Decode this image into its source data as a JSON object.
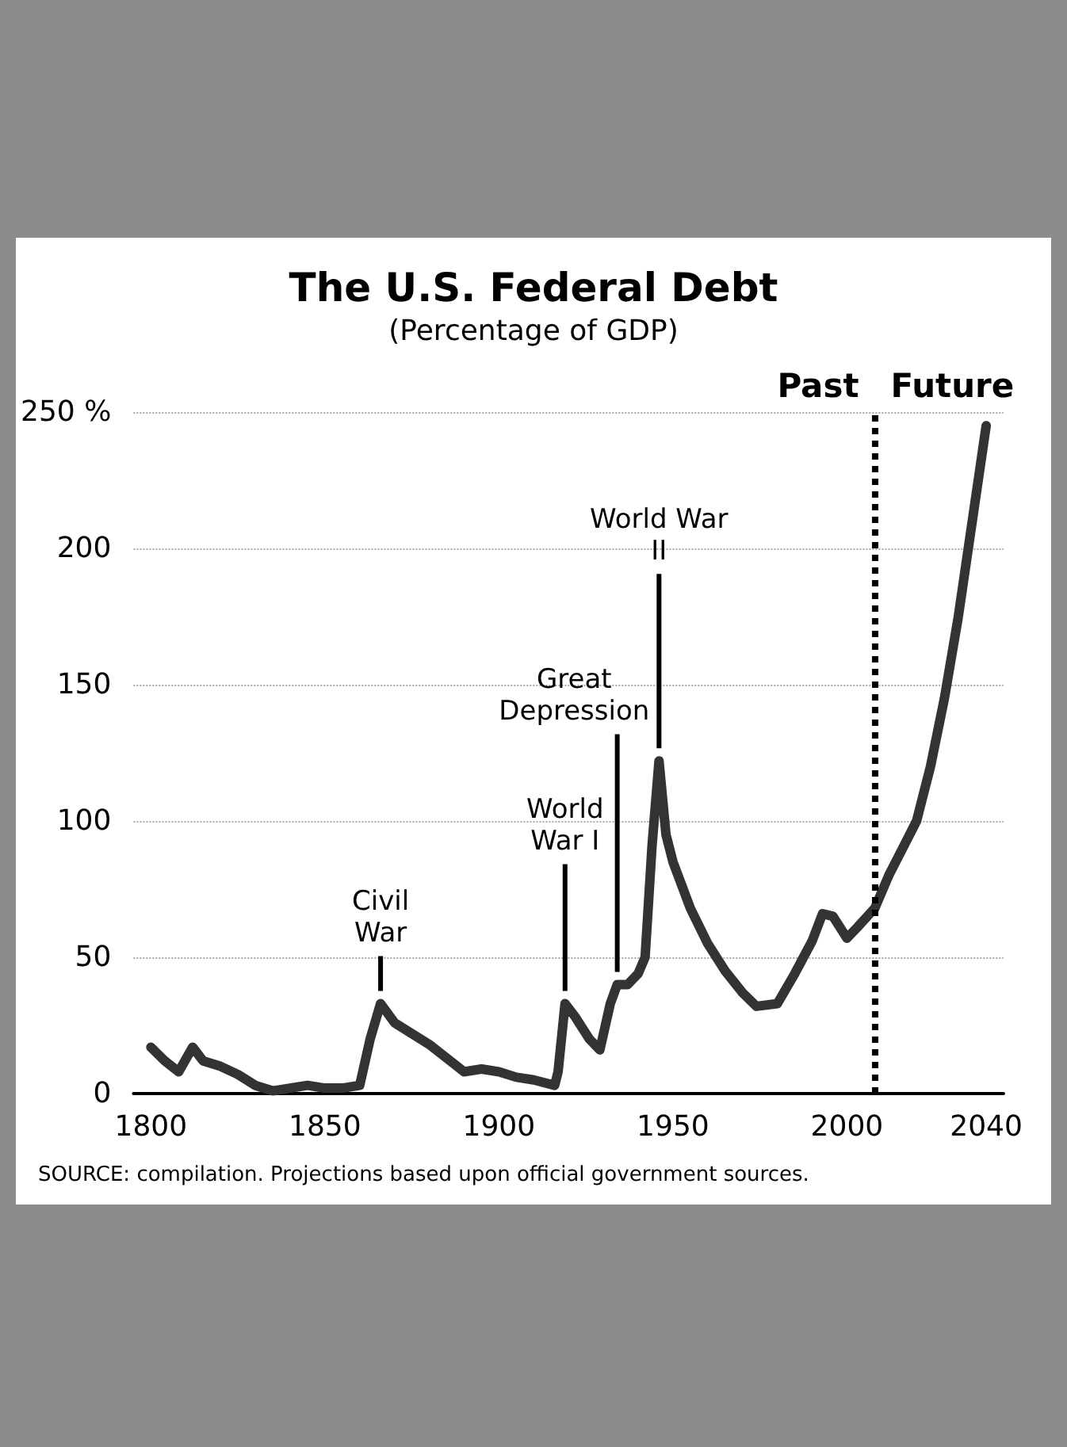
{
  "chart_data": {
    "type": "line",
    "title": "The U.S. Federal Debt",
    "subtitle": "(Percentage of GDP)",
    "x": [
      1800,
      1804,
      1808,
      1812,
      1815,
      1820,
      1825,
      1830,
      1835,
      1840,
      1845,
      1850,
      1855,
      1860,
      1863,
      1866,
      1870,
      1875,
      1880,
      1885,
      1890,
      1895,
      1900,
      1905,
      1910,
      1916,
      1917,
      1919,
      1922,
      1926,
      1929,
      1932,
      1934,
      1937,
      1940,
      1942,
      1944,
      1946,
      1948,
      1950,
      1955,
      1960,
      1965,
      1970,
      1974,
      1980,
      1985,
      1990,
      1993,
      1996,
      2000,
      2003,
      2008,
      2012,
      2016,
      2020,
      2024,
      2028,
      2032,
      2036,
      2040
    ],
    "series": [
      {
        "color": "#333333",
        "values": [
          17,
          12,
          8,
          17,
          12,
          10,
          7,
          3,
          1,
          2,
          3,
          2,
          2,
          3,
          20,
          33,
          26,
          22,
          18,
          13,
          8,
          9,
          8,
          6,
          5,
          3,
          8,
          33,
          28,
          20,
          16,
          33,
          40,
          40,
          44,
          50,
          91,
          122,
          95,
          85,
          68,
          55,
          45,
          37,
          32,
          33,
          44,
          56,
          66,
          65,
          57,
          61,
          68,
          80,
          90,
          100,
          120,
          145,
          175,
          210,
          245
        ]
      }
    ],
    "xlim": [
      1795,
      2045
    ],
    "xticks": [
      1800,
      1850,
      1900,
      1950,
      2000,
      2040
    ],
    "ylim": [
      0,
      250
    ],
    "yticks": [
      0,
      50,
      100,
      150,
      200,
      {
        "value": 250,
        "label": "250 %"
      }
    ],
    "grid": "y",
    "marker": "none",
    "line_style": "solid",
    "ref_lines": [
      {
        "axis": "x",
        "value": 2008,
        "color": "#000000",
        "line_style": "dotted"
      }
    ],
    "annotations": [
      {
        "text": "Civil\nWar",
        "x": 1866,
        "y": 33
      },
      {
        "text": "World\nWar I",
        "x": 1919,
        "y": 33
      },
      {
        "text": "Great\nDepression",
        "x": 1934,
        "y": 40
      },
      {
        "text": "World War\nII",
        "x": 1946,
        "y": 122
      },
      "Past",
      "Future",
      "SOURCE: compilation. Projections based upon official government sources."
    ]
  }
}
